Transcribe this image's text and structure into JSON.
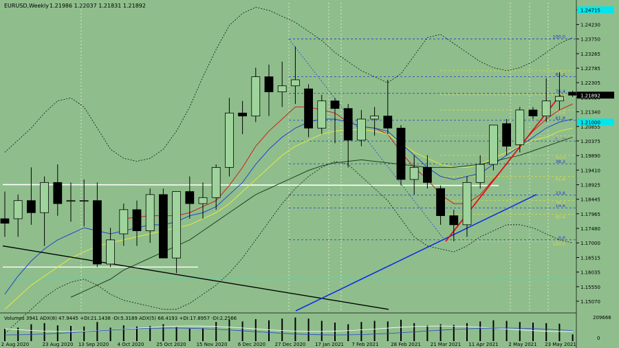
{
  "header": {
    "symbol": "EURUSD,Weekly",
    "ohlc": "1.21986 1.22037 1.21831 1.21892"
  },
  "current_price": "1.21892",
  "cyan_price_tag": "1.21000",
  "top_price_tag": "1.24715",
  "colors": {
    "background": "#8fbe8c",
    "bull_candle": "#9ed49b",
    "bear_candle": "#000000",
    "ma_red": "#d11c1c",
    "ma_blue": "#2244cc",
    "ma_yellow": "#e8e840",
    "ma_dark": "#1f3f1f",
    "trend_red": "#e01010",
    "trend_blue": "#1030e0",
    "fib_blue": "#2233cc",
    "fib_yellow": "#d8d84a",
    "cyan": "#00e6ee"
  },
  "indicator": {
    "label": "Volumes 3941  ADX(8) 47.9445 +DI:21.1438 -DI:5.3189  ADX(5) 68.4193 +DI:17.8957 -DI:2.2566",
    "scale_top": "209666",
    "scale_mid": "0"
  },
  "chart_data": {
    "type": "candlestick",
    "ylim": [
      1.1475,
      1.2495
    ],
    "y_ticks": [
      "1.24715",
      "1.24230",
      "1.23750",
      "1.23265",
      "1.22785",
      "1.22305",
      "1.21820",
      "1.21340",
      "1.20855",
      "1.20375",
      "1.19890",
      "1.19410",
      "1.18925",
      "1.18445",
      "1.17965",
      "1.17480",
      "1.17000",
      "1.16515",
      "1.16035",
      "1.15550",
      "1.15070"
    ],
    "x_labels": [
      "2 Aug 2020",
      "23 Aug 2020",
      "13 Sep 2020",
      "4 Oct 2020",
      "25 Oct 2020",
      "15 Nov 2020",
      "6 Dec 2020",
      "27 Dec 2020",
      "17 Jan 2021",
      "7 Feb 2021",
      "28 Feb 2021",
      "21 Mar 2021",
      "11 Apr 2021",
      "2 May 2021",
      "23 May 2021"
    ],
    "candles": [
      {
        "o": 1.178,
        "h": 1.187,
        "l": 1.172,
        "c": 1.1765
      },
      {
        "o": 1.178,
        "h": 1.186,
        "l": 1.172,
        "c": 1.184
      },
      {
        "o": 1.184,
        "h": 1.195,
        "l": 1.176,
        "c": 1.18
      },
      {
        "o": 1.18,
        "h": 1.192,
        "l": 1.169,
        "c": 1.19
      },
      {
        "o": 1.19,
        "h": 1.196,
        "l": 1.179,
        "c": 1.183
      },
      {
        "o": 1.184,
        "h": 1.19,
        "l": 1.177,
        "c": 1.184
      },
      {
        "o": 1.184,
        "h": 1.191,
        "l": 1.1755,
        "c": 1.184
      },
      {
        "o": 1.184,
        "h": 1.19,
        "l": 1.162,
        "c": 1.163
      },
      {
        "o": 1.163,
        "h": 1.175,
        "l": 1.162,
        "c": 1.171
      },
      {
        "o": 1.173,
        "h": 1.183,
        "l": 1.169,
        "c": 1.181
      },
      {
        "o": 1.181,
        "h": 1.184,
        "l": 1.169,
        "c": 1.174
      },
      {
        "o": 1.174,
        "h": 1.188,
        "l": 1.17,
        "c": 1.186
      },
      {
        "o": 1.186,
        "h": 1.188,
        "l": 1.165,
        "c": 1.165
      },
      {
        "o": 1.165,
        "h": 1.186,
        "l": 1.16,
        "c": 1.187
      },
      {
        "o": 1.187,
        "h": 1.192,
        "l": 1.178,
        "c": 1.183
      },
      {
        "o": 1.183,
        "h": 1.19,
        "l": 1.178,
        "c": 1.185
      },
      {
        "o": 1.185,
        "h": 1.196,
        "l": 1.181,
        "c": 1.195
      },
      {
        "o": 1.195,
        "h": 1.218,
        "l": 1.192,
        "c": 1.213
      },
      {
        "o": 1.213,
        "h": 1.217,
        "l": 1.206,
        "c": 1.212
      },
      {
        "o": 1.212,
        "h": 1.228,
        "l": 1.21,
        "c": 1.225
      },
      {
        "o": 1.225,
        "h": 1.229,
        "l": 1.212,
        "c": 1.22
      },
      {
        "o": 1.22,
        "h": 1.23,
        "l": 1.215,
        "c": 1.222
      },
      {
        "o": 1.222,
        "h": 1.235,
        "l": 1.216,
        "c": 1.224
      },
      {
        "o": 1.221,
        "h": 1.2225,
        "l": 1.205,
        "c": 1.208
      },
      {
        "o": 1.208,
        "h": 1.219,
        "l": 1.206,
        "c": 1.217
      },
      {
        "o": 1.217,
        "h": 1.218,
        "l": 1.203,
        "c": 1.2145
      },
      {
        "o": 1.2145,
        "h": 1.216,
        "l": 1.195,
        "c": 1.204
      },
      {
        "o": 1.204,
        "h": 1.214,
        "l": 1.202,
        "c": 1.211
      },
      {
        "o": 1.211,
        "h": 1.215,
        "l": 1.2055,
        "c": 1.212
      },
      {
        "o": 1.212,
        "h": 1.224,
        "l": 1.206,
        "c": 1.208
      },
      {
        "o": 1.208,
        "h": 1.209,
        "l": 1.189,
        "c": 1.191
      },
      {
        "o": 1.191,
        "h": 1.199,
        "l": 1.186,
        "c": 1.195
      },
      {
        "o": 1.195,
        "h": 1.199,
        "l": 1.188,
        "c": 1.19
      },
      {
        "o": 1.188,
        "h": 1.189,
        "l": 1.176,
        "c": 1.179
      },
      {
        "o": 1.179,
        "h": 1.181,
        "l": 1.1705,
        "c": 1.176
      },
      {
        "o": 1.176,
        "h": 1.192,
        "l": 1.172,
        "c": 1.19
      },
      {
        "o": 1.19,
        "h": 1.199,
        "l": 1.188,
        "c": 1.196
      },
      {
        "o": 1.196,
        "h": 1.208,
        "l": 1.194,
        "c": 1.209
      },
      {
        "o": 1.2095,
        "h": 1.211,
        "l": 1.199,
        "c": 1.202
      },
      {
        "o": 1.2025,
        "h": 1.215,
        "l": 1.2,
        "c": 1.214
      },
      {
        "o": 1.214,
        "h": 1.215,
        "l": 1.211,
        "c": 1.212
      },
      {
        "o": 1.212,
        "h": 1.2245,
        "l": 1.21,
        "c": 1.217
      },
      {
        "o": 1.217,
        "h": 1.2265,
        "l": 1.214,
        "c": 1.2185
      },
      {
        "o": 1.2199,
        "h": 1.2204,
        "l": 1.2183,
        "c": 1.2189
      }
    ],
    "moving_averages": [
      {
        "color": "red",
        "values": [
          null,
          null,
          null,
          null,
          null,
          null,
          null,
          null,
          null,
          1.178,
          1.1785,
          1.179,
          1.179,
          1.179,
          1.18,
          1.182,
          1.184,
          1.189,
          1.195,
          1.202,
          1.207,
          1.211,
          1.215,
          1.215,
          1.214,
          1.213,
          1.21,
          1.2085,
          1.208,
          1.206,
          1.2,
          1.195,
          1.191,
          1.186,
          1.183,
          1.183,
          1.186,
          1.191,
          1.196,
          1.202,
          1.207,
          1.211,
          1.214,
          1.216
        ]
      },
      {
        "color": "blue",
        "values": [
          1.153,
          1.159,
          1.164,
          1.168,
          1.171,
          1.173,
          1.175,
          1.174,
          1.173,
          1.174,
          1.175,
          1.176,
          1.176,
          1.177,
          1.179,
          1.18,
          1.182,
          1.186,
          1.19,
          1.196,
          1.201,
          1.205,
          1.208,
          1.21,
          1.211,
          1.211,
          1.21,
          1.2085,
          1.208,
          1.207,
          1.203,
          1.199,
          1.195,
          1.192,
          1.191,
          1.192,
          1.193,
          1.196,
          1.199,
          1.202,
          1.205,
          1.208,
          1.21,
          1.211
        ]
      },
      {
        "color": "yellow",
        "values": [
          1.148,
          1.152,
          1.156,
          1.159,
          1.162,
          1.165,
          1.167,
          1.169,
          1.17,
          1.171,
          1.172,
          1.173,
          1.174,
          1.175,
          1.176,
          1.178,
          1.18,
          1.183,
          1.187,
          1.191,
          1.195,
          1.199,
          1.202,
          1.204,
          1.206,
          1.207,
          1.2075,
          1.2075,
          1.207,
          1.206,
          1.203,
          1.2,
          1.198,
          1.196,
          1.195,
          1.195,
          1.196,
          1.198,
          1.2,
          1.202,
          1.204,
          1.205,
          1.207,
          1.208
        ]
      },
      {
        "color": "dark",
        "values": [
          null,
          null,
          null,
          null,
          null,
          1.152,
          1.154,
          1.156,
          1.158,
          1.161,
          1.163,
          1.165,
          1.167,
          1.169,
          1.171,
          1.174,
          1.177,
          1.18,
          1.183,
          1.186,
          1.188,
          1.19,
          1.192,
          1.194,
          1.1955,
          1.1965,
          1.197,
          1.1975,
          1.197,
          1.1965,
          1.196,
          1.1955,
          1.195,
          1.195,
          1.195,
          1.1955,
          1.196,
          1.197,
          1.198,
          1.199,
          1.2005,
          1.202,
          1.2035,
          1.205
        ]
      }
    ],
    "bollinger": {
      "upper": [
        1.2,
        1.204,
        1.208,
        1.213,
        1.217,
        1.218,
        1.215,
        1.208,
        1.201,
        1.198,
        1.197,
        1.198,
        1.201,
        1.207,
        1.215,
        1.225,
        1.234,
        1.242,
        1.246,
        1.248,
        1.247,
        1.245,
        1.243,
        1.24,
        1.237,
        1.233,
        1.23,
        1.227,
        1.225,
        1.223,
        1.226,
        1.232,
        1.238,
        1.239,
        1.236,
        1.233,
        1.23,
        1.228,
        1.227,
        1.228,
        1.23,
        1.233,
        1.236,
        1.238
      ],
      "lower": [
        1.14,
        1.144,
        1.148,
        1.152,
        1.155,
        1.157,
        1.158,
        1.156,
        1.153,
        1.151,
        1.15,
        1.149,
        1.148,
        1.148,
        1.15,
        1.153,
        1.156,
        1.16,
        1.165,
        1.171,
        1.177,
        1.183,
        1.188,
        1.192,
        1.195,
        1.197,
        1.196,
        1.192,
        1.188,
        1.184,
        1.178,
        1.172,
        1.169,
        1.168,
        1.167,
        1.169,
        1.172,
        1.174,
        1.176,
        1.176,
        1.175,
        1.173,
        1.171,
        1.17
      ]
    },
    "fibonacci": {
      "levels_blue": [
        {
          "label": "100.0",
          "y": 1.2375
        },
        {
          "label": "85.4",
          "y": 1.225
        },
        {
          "label": "76.4",
          "y": 1.2195
        },
        {
          "label": "61.8",
          "y": 1.2106
        },
        {
          "label": "50.0",
          "y": 1.2037
        },
        {
          "label": "38.2",
          "y": 1.1962
        },
        {
          "label": "23.6",
          "y": 1.1858
        },
        {
          "label": "14.6",
          "y": 1.1816
        },
        {
          "label": "0.0",
          "y": 1.171
        }
      ],
      "levels_yellow": [
        {
          "label": "61.8",
          "y": 1.192
        },
        {
          "label": "50.0",
          "y": 1.199
        },
        {
          "label": "38.2",
          "y": 1.2055
        },
        {
          "label": "23.6",
          "y": 1.214
        },
        {
          "label": "14.6",
          "y": 1.219
        },
        {
          "label": "0.0",
          "y": 1.227
        },
        {
          "label": "76.4",
          "y": 1.184
        },
        {
          "label": "85.4",
          "y": 1.1795
        },
        {
          "label": "100.0",
          "y": 1.1705
        }
      ]
    },
    "volume": [
      110,
      120,
      150,
      160,
      140,
      135,
      130,
      170,
      120,
      140,
      130,
      135,
      150,
      125,
      110,
      115,
      170,
      190,
      175,
      195,
      185,
      200,
      210,
      200,
      180,
      165,
      150,
      170,
      180,
      175,
      190,
      160,
      140,
      150,
      145,
      160,
      175,
      185,
      180,
      170,
      165,
      160,
      155,
      60
    ]
  }
}
